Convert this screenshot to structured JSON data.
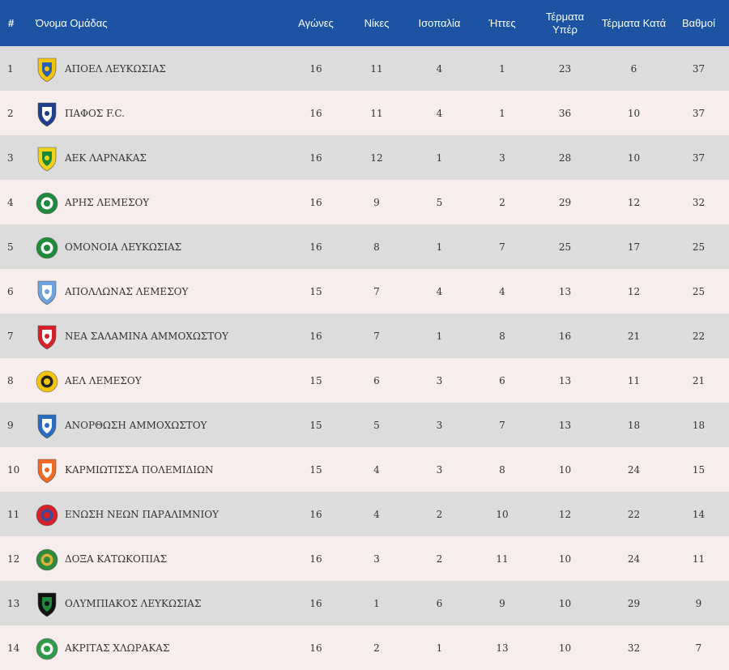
{
  "header": {
    "pos": "#",
    "team": "Όνομα Ομάδας",
    "played": "Αγώνες",
    "wins": "Νίκες",
    "draws": "Ισοπαλία",
    "losses": "Ήττες",
    "gf": "Τέρματα Υπέρ",
    "ga": "Τέρματα Κατά",
    "points": "Βαθμοί"
  },
  "rows": [
    {
      "pos": "1",
      "team": "ΑΠΟΕΛ ΛΕΥΚΩΣΙΑΣ",
      "played": "16",
      "wins": "11",
      "draws": "4",
      "losses": "1",
      "gf": "23",
      "ga": "6",
      "points": "37",
      "logo": {
        "icon": "apoel-crest-icon",
        "color": "#f2c40c",
        "accent": "#2a5fb0",
        "shape": "shield"
      }
    },
    {
      "pos": "2",
      "team": "ΠΑΦΟΣ F.C.",
      "played": "16",
      "wins": "11",
      "draws": "4",
      "losses": "1",
      "gf": "36",
      "ga": "10",
      "points": "37",
      "logo": {
        "icon": "pafos-crest-icon",
        "color": "#1f3f8a",
        "accent": "#ffffff",
        "shape": "shield"
      }
    },
    {
      "pos": "3",
      "team": "ΑΕΚ ΛΑΡΝΑΚΑΣ",
      "played": "16",
      "wins": "12",
      "draws": "1",
      "losses": "3",
      "gf": "28",
      "ga": "10",
      "points": "37",
      "logo": {
        "icon": "aek-crest-icon",
        "color": "#f2d21a",
        "accent": "#178a3a",
        "shape": "shield"
      }
    },
    {
      "pos": "4",
      "team": "ΑΡΗΣ ΛΕΜΕΣΟΥ",
      "played": "16",
      "wins": "9",
      "draws": "5",
      "losses": "2",
      "gf": "29",
      "ga": "12",
      "points": "32",
      "logo": {
        "icon": "aris-crest-icon",
        "color": "#1f8a3d",
        "accent": "#ffffff",
        "shape": "round"
      }
    },
    {
      "pos": "5",
      "team": "ΟΜΟΝΟΙΑ ΛΕΥΚΩΣΙΑΣ",
      "played": "16",
      "wins": "8",
      "draws": "1",
      "losses": "7",
      "gf": "25",
      "ga": "17",
      "points": "25",
      "logo": {
        "icon": "omonoia-crest-icon",
        "color": "#1e8a3a",
        "accent": "#ffffff",
        "shape": "round"
      }
    },
    {
      "pos": "6",
      "team": "ΑΠΟΛΛΩΝΑΣ ΛΕΜΕΣΟΥ",
      "played": "15",
      "wins": "7",
      "draws": "4",
      "losses": "4",
      "gf": "13",
      "ga": "12",
      "points": "25",
      "logo": {
        "icon": "apollon-crest-icon",
        "color": "#6fa3de",
        "accent": "#ffffff",
        "shape": "shield"
      }
    },
    {
      "pos": "7",
      "team": "ΝΕΑ ΣΑΛΑΜΙΝΑ ΑΜΜΟΧΩΣΤΟΥ",
      "played": "16",
      "wins": "7",
      "draws": "1",
      "losses": "8",
      "gf": "16",
      "ga": "21",
      "points": "22",
      "logo": {
        "icon": "nea-salamina-crest-icon",
        "color": "#d62128",
        "accent": "#ffffff",
        "shape": "shield"
      }
    },
    {
      "pos": "8",
      "team": "ΑΕΛ ΛΕΜΕΣΟΥ",
      "played": "15",
      "wins": "6",
      "draws": "3",
      "losses": "6",
      "gf": "13",
      "ga": "11",
      "points": "21",
      "logo": {
        "icon": "ael-crest-icon",
        "color": "#f2c40c",
        "accent": "#222222",
        "shape": "round"
      }
    },
    {
      "pos": "9",
      "team": "ΑΝΟΡΘΩΣΗ ΑΜΜΟΧΩΣΤΟΥ",
      "played": "15",
      "wins": "5",
      "draws": "3",
      "losses": "7",
      "gf": "13",
      "ga": "18",
      "points": "18",
      "logo": {
        "icon": "anorthosis-crest-icon",
        "color": "#2a6dc0",
        "accent": "#ffffff",
        "shape": "shield"
      }
    },
    {
      "pos": "10",
      "team": "ΚΑΡΜΙΩΤΙΣΣΑ ΠΟΛΕΜΙΔΙΩΝ",
      "played": "15",
      "wins": "4",
      "draws": "3",
      "losses": "8",
      "gf": "10",
      "ga": "24",
      "points": "15",
      "logo": {
        "icon": "karmiotissa-crest-icon",
        "color": "#f06a25",
        "accent": "#ffffff",
        "shape": "shield"
      }
    },
    {
      "pos": "11",
      "team": "ΕΝΩΣΗ ΝΕΩΝ ΠΑΡΑΛΙΜΝΙΟΥ",
      "played": "16",
      "wins": "4",
      "draws": "2",
      "losses": "10",
      "gf": "12",
      "ga": "22",
      "points": "14",
      "logo": {
        "icon": "enp-crest-icon",
        "color": "#d62128",
        "accent": "#3b4a9a",
        "shape": "round"
      }
    },
    {
      "pos": "12",
      "team": "ΔΟΞΑ ΚΑΤΩΚΟΠΙΑΣ",
      "played": "16",
      "wins": "3",
      "draws": "2",
      "losses": "11",
      "gf": "10",
      "ga": "24",
      "points": "11",
      "logo": {
        "icon": "doxa-crest-icon",
        "color": "#2f8a3c",
        "accent": "#d9b23a",
        "shape": "round"
      }
    },
    {
      "pos": "13",
      "team": "ΟΛΥΜΠΙΑΚΟΣ ΛΕΥΚΩΣΙΑΣ",
      "played": "16",
      "wins": "1",
      "draws": "6",
      "losses": "9",
      "gf": "10",
      "ga": "29",
      "points": "9",
      "logo": {
        "icon": "olympiakos-crest-icon",
        "color": "#111111",
        "accent": "#1f8a3d",
        "shape": "shield"
      }
    },
    {
      "pos": "14",
      "team": "ΑΚΡΙΤΑΣ ΧΛΩΡΑΚΑΣ",
      "played": "16",
      "wins": "2",
      "draws": "1",
      "losses": "13",
      "gf": "10",
      "ga": "32",
      "points": "7",
      "logo": {
        "icon": "akritas-crest-icon",
        "color": "#2e9a4a",
        "accent": "#ffffff",
        "shape": "round"
      }
    }
  ]
}
